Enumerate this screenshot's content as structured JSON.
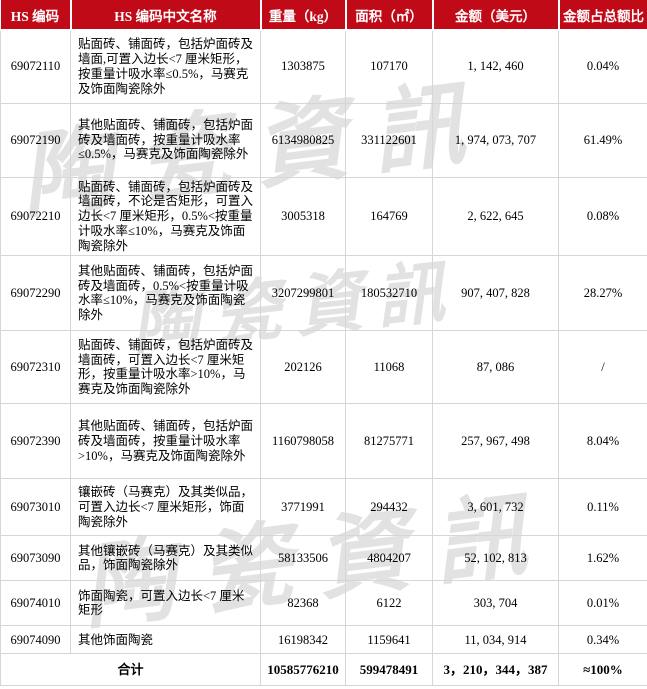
{
  "colors": {
    "header_bg": "#c00a18",
    "header_text": "#ffffff",
    "grid_line": "#d6d6d6",
    "watermark": "#e2e2e2"
  },
  "watermark": {
    "text": "陶瓷資訊"
  },
  "header": {
    "col_code": "HS 编码",
    "col_name": "HS 编码中文名称",
    "col_weight": "重量（kg）",
    "col_area": "面积（㎡）",
    "col_amount": "金额（美元）",
    "col_share": "金额占总额比"
  },
  "rows": [
    {
      "code": "69072110",
      "name": "贴面砖、铺面砖，包括炉面砖及墙面,可置入边长<7 厘米矩形，按重量计吸水率≤0.5%，马赛克及饰面陶瓷除外",
      "weight": "1303875",
      "area": "107170",
      "amount": "1, 142, 460",
      "share": "0.04%"
    },
    {
      "code": "69072190",
      "name": "其他贴面砖、铺面砖，包括炉面砖及墙面砖，按重量计吸水率≤0.5%，马赛克及饰面陶瓷除外",
      "weight": "6134980825",
      "area": "331122601",
      "amount": "1, 974, 073, 707",
      "share": "61.49%"
    },
    {
      "code": "69072210",
      "name": "贴面砖、铺面砖，包括炉面砖及墙面砖，不论是否矩形，可置入边长<7 厘米矩形，0.5%<按重量计吸水率≤10%，马赛克及饰面陶瓷除外",
      "weight": "3005318",
      "area": "164769",
      "amount": "2, 622, 645",
      "share": "0.08%"
    },
    {
      "code": "69072290",
      "name": "其他贴面砖、铺面砖，包括炉面砖及墙面砖，0.5%<按重量计吸水率≤10%，马赛克及饰面陶瓷除外",
      "weight": "3207299801",
      "area": "180532710",
      "amount": "907, 407, 828",
      "share": "28.27%"
    },
    {
      "code": "69072310",
      "name": "贴面砖、铺面砖，包括炉面砖及墙面砖，可置入边长<7 厘米矩形，按重量计吸水率>10%，马赛克及饰面陶瓷除外",
      "weight": "202126",
      "area": "11068",
      "amount": "87, 086",
      "share": "/"
    },
    {
      "code": "69072390",
      "name": "其他贴面砖、铺面砖，包括炉面砖及墙面砖，按重量计吸水率>10%，马赛克及饰面陶瓷除外",
      "weight": "1160798058",
      "area": "81275771",
      "amount": "257, 967, 498",
      "share": "8.04%"
    },
    {
      "code": "69073010",
      "name": "镶嵌砖（马赛克）及其类似品，可置入边长<7 厘米矩形，饰面陶瓷除外",
      "weight": "3771991",
      "area": "294432",
      "amount": "3, 601, 732",
      "share": "0.11%"
    },
    {
      "code": "69073090",
      "name": "其他镶嵌砖（马赛克）及其类似品，饰面陶瓷除外",
      "weight": "58133506",
      "area": "4804207",
      "amount": "52, 102, 813",
      "share": "1.62%"
    },
    {
      "code": "69074010",
      "name": "饰面陶瓷，可置入边长<7 厘米矩形",
      "weight": "82368",
      "area": "6122",
      "amount": "303, 704",
      "share": "0.01%"
    },
    {
      "code": "69074090",
      "name": "其他饰面陶瓷",
      "weight": "16198342",
      "area": "1159641",
      "amount": "11, 034, 914",
      "share": "0.34%"
    }
  ],
  "total": {
    "label": "合计",
    "weight": "10585776210",
    "area": "599478491",
    "amount": "3，210，344，387",
    "share": "≈100%"
  }
}
